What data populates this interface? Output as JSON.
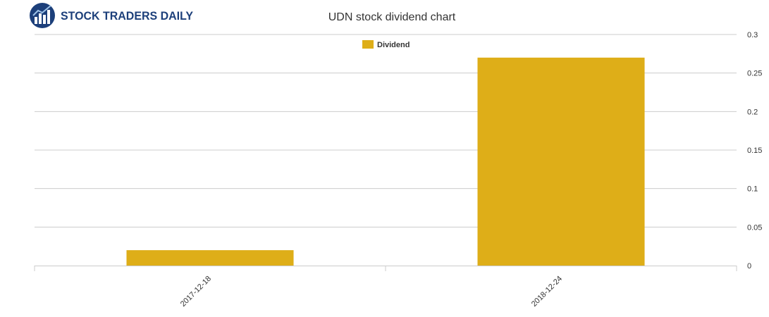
{
  "brand": {
    "name": "STOCK TRADERS DAILY"
  },
  "colors": {
    "dividend": "#deae18",
    "grid": "#cccccc",
    "text": "#333333",
    "logo_blue": "#1c3f7a"
  },
  "chart_data": {
    "type": "bar",
    "title": "UDN stock dividend chart",
    "categories": [
      "2017-12-18",
      "2018-12-24"
    ],
    "series": [
      {
        "name": "Dividend",
        "values": [
          0.02,
          0.27
        ]
      }
    ],
    "ylim": [
      0,
      0.3
    ],
    "yticks": [
      "0",
      "0.05",
      "0.1",
      "0.15",
      "0.2",
      "0.25",
      "0.3"
    ],
    "y_axis_side": "right",
    "grid": true,
    "legend": "top-center",
    "xlabel": "",
    "ylabel": ""
  }
}
